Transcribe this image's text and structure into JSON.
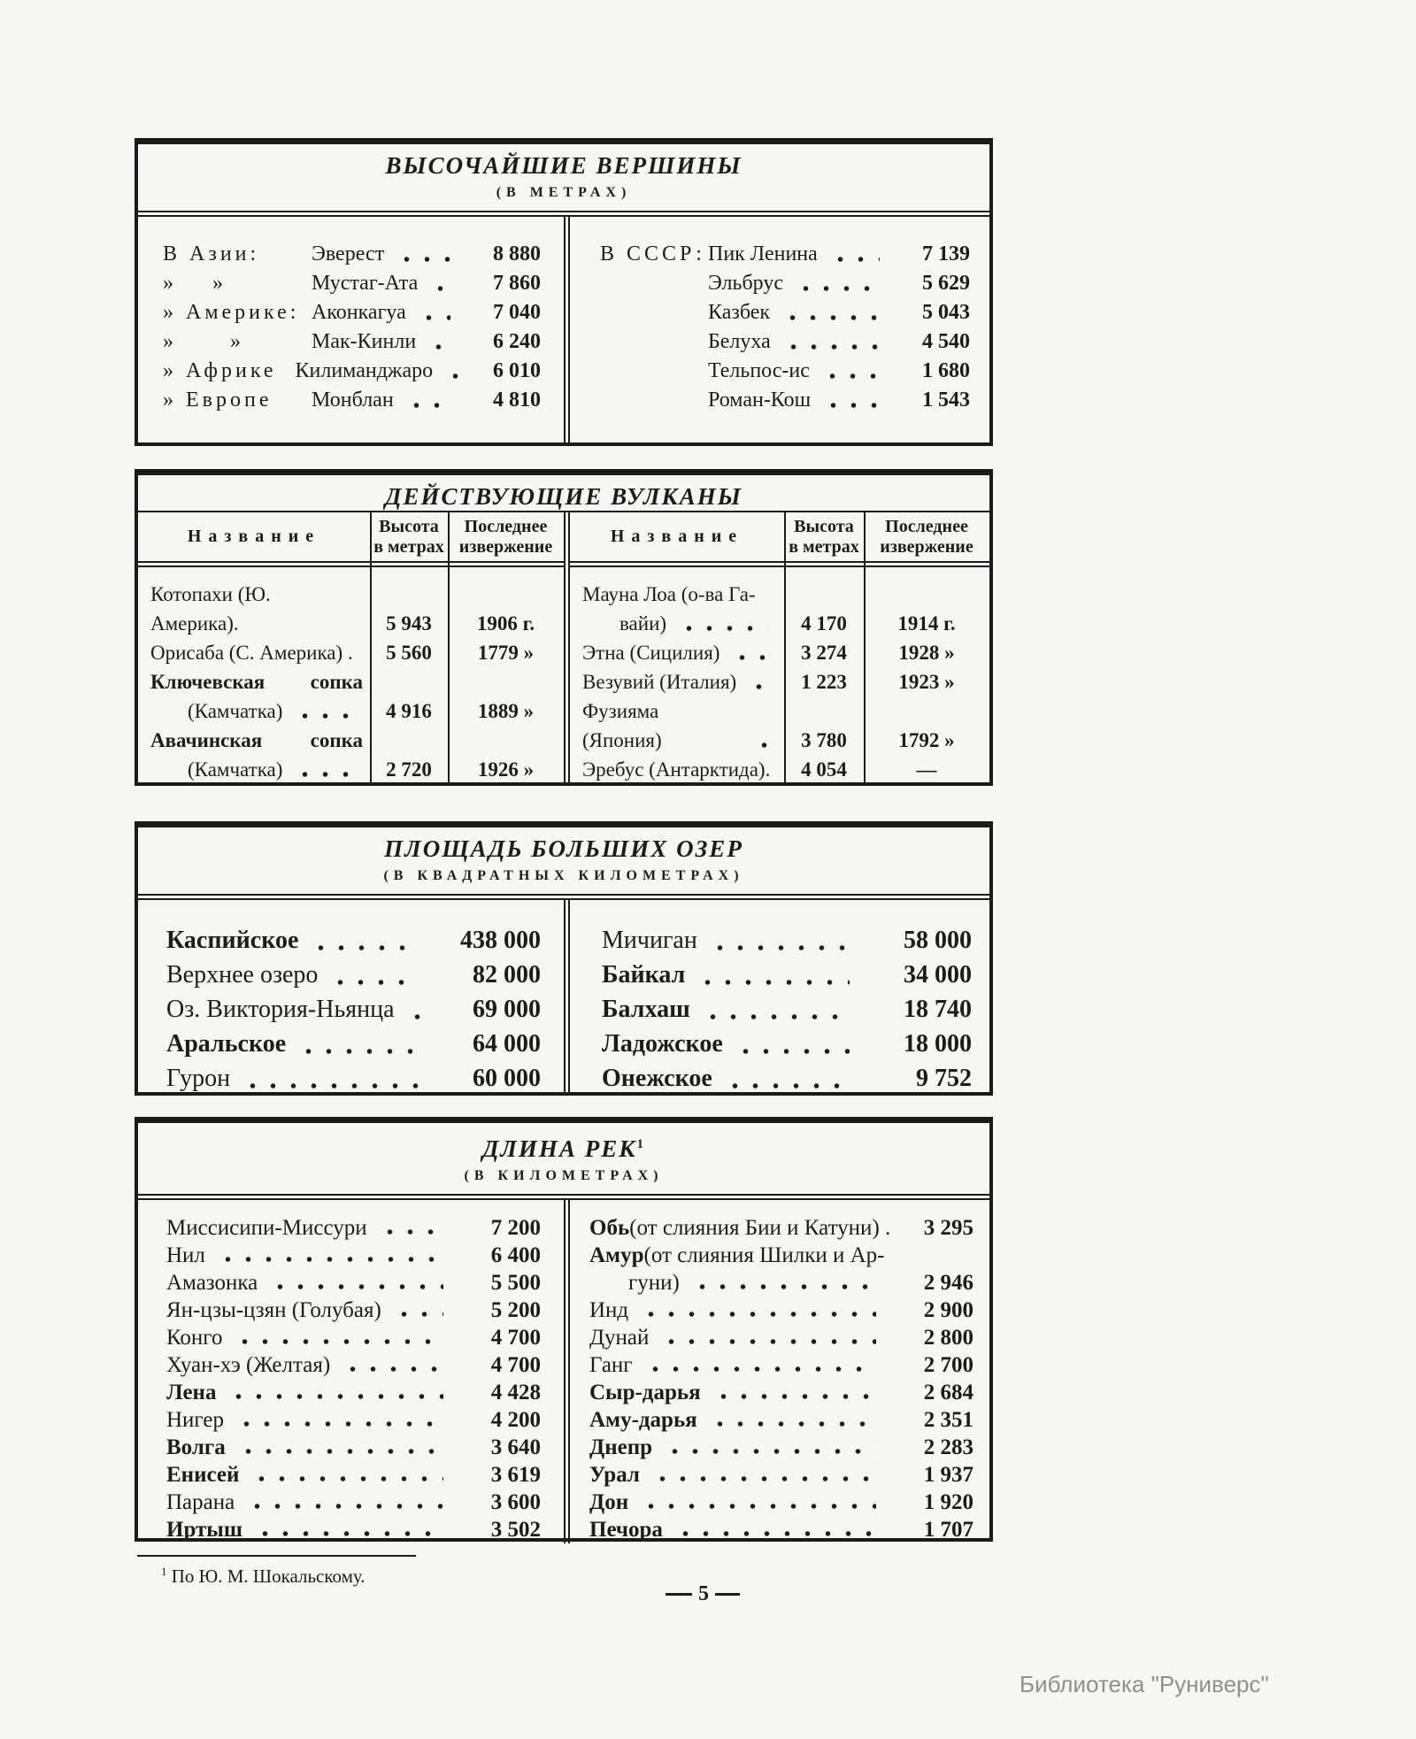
{
  "page": {
    "paper_color": "#f7f7f2",
    "ink_color": "#1c1c1c",
    "footnote_marker": "1",
    "footnote_text": "По Ю. М. Шокальскому.",
    "page_number": "5",
    "watermark": "Библиотека \"Руниверс\""
  },
  "peaks": {
    "title": "ВЫСОЧАЙШИЕ ВЕРШИНЫ",
    "subtitle": "(В МЕТРАХ)",
    "left": [
      {
        "region": "В Азии:",
        "name": "Эверест",
        "value": "8 880"
      },
      {
        "region": "»    »",
        "name": "Мустаг-Ата",
        "value": "7 860"
      },
      {
        "region": "» Америке:",
        "name": "Аконкагуа",
        "value": "7 040"
      },
      {
        "region": "»      »",
        "name": "Мак-Кинли",
        "value": "6 240"
      },
      {
        "region": "» Африке",
        "name": "Килиманджаро",
        "value": "6 010"
      },
      {
        "region": "» Европе",
        "name": "Монблан",
        "value": "4 810"
      }
    ],
    "right": [
      {
        "region": "В СССР:",
        "name": "Пик Ленина",
        "value": "7 139"
      },
      {
        "region": "",
        "name": "Эльбрус",
        "value": "5 629"
      },
      {
        "region": "",
        "name": "Казбек",
        "value": "5 043"
      },
      {
        "region": "",
        "name": "Белуха",
        "value": "4 540"
      },
      {
        "region": "",
        "name": "Тельпос-ис",
        "value": "1 680"
      },
      {
        "region": "",
        "name": "Роман-Кош",
        "value": "1 543"
      }
    ]
  },
  "volcanoes": {
    "title": "ДЕЙСТВУЮЩИЕ ВУЛКАНЫ",
    "header": {
      "name": "Название",
      "height": [
        "Высота",
        "в метрах"
      ],
      "eruption": [
        "Последнее",
        "извержение"
      ]
    },
    "left": [
      {
        "lines": [
          {
            "t": "Котопахи (Ю. Америка)."
          }
        ],
        "height": "5 943",
        "eruption": "1906 г."
      },
      {
        "lines": [
          {
            "t": "Орисаба (С. Америка) ."
          }
        ],
        "height": "5 560",
        "eruption": "1779 »"
      },
      {
        "lines": [
          {
            "t": "Ключевская сопка",
            "bold": true,
            "spread": true
          },
          {
            "t": "(Камчатка)",
            "indent": true,
            "dots": true
          }
        ],
        "height": "4 916",
        "eruption": "1889 »"
      },
      {
        "lines": [
          {
            "t": "Авачинская сопка",
            "bold": true,
            "spread": true
          },
          {
            "t": "(Камчатка)",
            "indent": true,
            "dots": true
          }
        ],
        "height": "2 720",
        "eruption": "1926 »"
      }
    ],
    "right": [
      {
        "lines": [
          {
            "t": "Мауна Лоа (о-ва Га-"
          },
          {
            "t": "вайи)",
            "indent": true,
            "dots": true
          }
        ],
        "height": "4 170",
        "eruption": "1914 г."
      },
      {
        "lines": [
          {
            "t": "Этна (Сицилия)",
            "dots": true
          }
        ],
        "height": "3 274",
        "eruption": "1928 »"
      },
      {
        "lines": [
          {
            "t": "Везувий (Италия)",
            "dots": true
          }
        ],
        "height": "1 223",
        "eruption": "1923 »"
      },
      {
        "lines": [
          {
            "t": "Фузияма (Япония)",
            "dots": true
          }
        ],
        "height": "3 780",
        "eruption": "1792 »"
      },
      {
        "lines": [
          {
            "t": "Эребус (Антарктида)."
          }
        ],
        "height": "4 054",
        "eruption": "—"
      }
    ]
  },
  "lakes": {
    "title": "ПЛОЩАДЬ БОЛЬШИХ ОЗЕР",
    "subtitle": "(В КВАДРАТНЫХ КИЛОМЕТРАХ)",
    "left": [
      [
        {
          "bold": "Каспийское",
          "dots": true,
          "value": "438 000"
        }
      ],
      [
        {
          "text": "Верхнее озеро",
          "dots": true,
          "value": "82 000"
        }
      ],
      [
        {
          "text": "Оз. Виктория-Ньянца",
          "dots": true,
          "value": "69 000"
        }
      ],
      [
        {
          "bold": "Аральское",
          "dots": true,
          "value": "64 000"
        }
      ],
      [
        {
          "text": "Гурон",
          "dots": true,
          "value": "60 000"
        }
      ]
    ],
    "right": [
      [
        {
          "text": "Мичиган",
          "dots": true,
          "value": "58 000"
        }
      ],
      [
        {
          "bold": "Байкал",
          "dots": true,
          "value": "34 000"
        }
      ],
      [
        {
          "bold": "Балхаш",
          "dots": true,
          "value": "18 740"
        }
      ],
      [
        {
          "bold": "Ладожское",
          "dots": true,
          "value": "18 000"
        }
      ],
      [
        {
          "bold": "Онежское",
          "dots": true,
          "value": "9 752"
        }
      ]
    ]
  },
  "rivers": {
    "title": "ДЛИНА РЕК",
    "title_sup": "1",
    "subtitle": "(В КИЛОМЕТРАХ)",
    "left": [
      [
        {
          "text": "Миссисипи-Миссури",
          "dots": true,
          "value": "7 200"
        }
      ],
      [
        {
          "text": "Нил",
          "dots": true,
          "value": "6 400"
        }
      ],
      [
        {
          "text": "Амазонка",
          "dots": true,
          "value": "5 500"
        }
      ],
      [
        {
          "text": "Ян-цзы-цзян (Голубая)",
          "dots": true,
          "value": "5 200"
        }
      ],
      [
        {
          "text": "Конго",
          "dots": true,
          "value": "4 700"
        }
      ],
      [
        {
          "text": "Хуан-хэ (Желтая)",
          "dots": true,
          "value": "4 700"
        }
      ],
      [
        {
          "bold": "Лена",
          "dots": true,
          "value": "4 428"
        }
      ],
      [
        {
          "text": "Нигер",
          "dots": true,
          "value": "4 200"
        }
      ],
      [
        {
          "bold": "Волга",
          "dots": true,
          "value": "3 640"
        }
      ],
      [
        {
          "bold": "Енисей",
          "dots": true,
          "value": "3 619"
        }
      ],
      [
        {
          "text": "Парана",
          "dots": true,
          "value": "3 600"
        }
      ],
      [
        {
          "bold": "Иртыш",
          "dots": true,
          "value": "3 502"
        }
      ]
    ],
    "right": [
      [
        {
          "bold": "Обь",
          "text": " (от слияния Бии и Катуни) .",
          "value": "3 295"
        }
      ],
      [
        {
          "bold": "Амур",
          "text": " (от слияния Шилки и Ар-"
        },
        {
          "text": "гуни)",
          "indent": true,
          "dots": true,
          "value": "2 946"
        }
      ],
      [
        {
          "text": "Инд",
          "dots": true,
          "value": "2 900"
        }
      ],
      [
        {
          "text": "Дунай",
          "dots": true,
          "value": "2 800"
        }
      ],
      [
        {
          "text": "Ганг",
          "dots": true,
          "value": "2 700"
        }
      ],
      [
        {
          "bold": "Сыр-дарья",
          "dots": true,
          "value": "2 684"
        }
      ],
      [
        {
          "bold": "Аму-дарья",
          "dots": true,
          "value": "2 351"
        }
      ],
      [
        {
          "bold": "Днепр",
          "dots": true,
          "value": "2 283"
        }
      ],
      [
        {
          "bold": "Урал",
          "dots": true,
          "value": "1 937"
        }
      ],
      [
        {
          "bold": "Дон",
          "dots": true,
          "value": "1 920"
        }
      ],
      [
        {
          "bold": "Печора",
          "dots": true,
          "value": "1 707"
        }
      ]
    ]
  }
}
